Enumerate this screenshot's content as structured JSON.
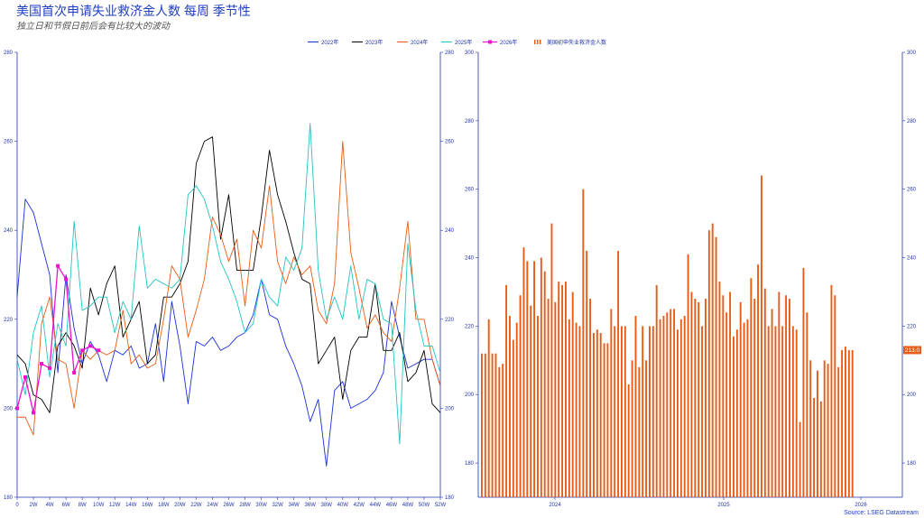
{
  "header": {
    "title": "美国首次申请失业救济金人数 每周 季节性",
    "subtitle": "独立日和节假日前后会有比较大的波动"
  },
  "footer": {
    "source": "Source: LSEG Datastream"
  },
  "colors": {
    "y2022": "#1a2fd6",
    "y2023": "#000000",
    "y2024": "#e85c17",
    "y2025": "#22c4c4",
    "y2026": "#ee11cc",
    "bars": "#e85c17",
    "axis": "#2233aa"
  },
  "chart_data": [
    {
      "type": "line",
      "title": "",
      "x_ticks": [
        "0",
        "2W",
        "4W",
        "6W",
        "8W",
        "10W",
        "12W",
        "14W",
        "16W",
        "18W",
        "20W",
        "22W",
        "24W",
        "26W",
        "28W",
        "30W",
        "32W",
        "34W",
        "36W",
        "38W",
        "40W",
        "42W",
        "44W",
        "46W",
        "48W",
        "50W",
        "52W"
      ],
      "y_ticks": [
        "180",
        "200",
        "220",
        "240",
        "260",
        "280"
      ],
      "ylim": [
        180,
        280
      ],
      "xlim": [
        0,
        52
      ],
      "grid": false,
      "legend_position": "top",
      "series": [
        {
          "name": "2022年",
          "x": [
            0,
            1,
            2,
            3,
            4,
            5,
            6,
            7,
            8,
            9,
            10,
            11,
            12,
            13,
            14,
            15,
            16,
            17,
            18,
            19,
            20,
            21,
            22,
            23,
            24,
            25,
            26,
            27,
            28,
            29,
            30,
            31,
            32,
            33,
            34,
            35,
            36,
            37,
            38,
            39,
            40,
            41,
            42,
            43,
            44,
            45,
            46,
            47,
            48,
            49,
            50,
            51,
            52
          ],
          "values": [
            225,
            247,
            244,
            237,
            230,
            208,
            230,
            218,
            210,
            215,
            212,
            206,
            213,
            212,
            214,
            209,
            210,
            219,
            206,
            224,
            214,
            201,
            215,
            214,
            216,
            213,
            214,
            216,
            217,
            221,
            229,
            221,
            220,
            214,
            210,
            205,
            197,
            202,
            187,
            204,
            206,
            200,
            201,
            202,
            204,
            208,
            224,
            216,
            209,
            210,
            211,
            211,
            205
          ]
        },
        {
          "name": "2023年",
          "x": [
            0,
            1,
            2,
            3,
            4,
            5,
            6,
            7,
            8,
            9,
            10,
            11,
            12,
            13,
            14,
            15,
            16,
            17,
            18,
            19,
            20,
            21,
            22,
            23,
            24,
            25,
            26,
            27,
            28,
            29,
            30,
            31,
            32,
            33,
            34,
            35,
            36,
            37,
            38,
            39,
            40,
            41,
            42,
            43,
            44,
            45,
            46,
            47,
            48,
            49,
            50,
            51,
            52
          ],
          "values": [
            212,
            210,
            203,
            202,
            199,
            214,
            217,
            214,
            209,
            227,
            221,
            228,
            232,
            216,
            220,
            224,
            210,
            212,
            225,
            225,
            228,
            233,
            255,
            260,
            261,
            238,
            248,
            231,
            231,
            231,
            243,
            258,
            248,
            242,
            235,
            229,
            228,
            210,
            213,
            216,
            202,
            213,
            216,
            216,
            228,
            213,
            213,
            217,
            206,
            208,
            213,
            201,
            199
          ]
        },
        {
          "name": "2024年",
          "x": [
            0,
            1,
            2,
            3,
            4,
            5,
            6,
            7,
            8,
            9,
            10,
            11,
            12,
            13,
            14,
            15,
            16,
            17,
            18,
            19,
            20,
            21,
            22,
            23,
            24,
            25,
            26,
            27,
            28,
            29,
            30,
            31,
            32,
            33,
            34,
            35,
            36,
            37,
            38,
            39,
            40,
            41,
            42,
            43,
            44,
            45,
            46,
            47,
            48,
            49,
            50,
            51,
            52
          ],
          "values": [
            198,
            198,
            194,
            219,
            225,
            211,
            210,
            200,
            213,
            211,
            213,
            212,
            213,
            222,
            210,
            212,
            209,
            210,
            220,
            232,
            229,
            216,
            222,
            229,
            243,
            239,
            233,
            238,
            223,
            240,
            236,
            250,
            233,
            228,
            234,
            230,
            232,
            222,
            219,
            228,
            260,
            235,
            227,
            218,
            221,
            217,
            215,
            227,
            242,
            220,
            220,
            211,
            205
          ]
        },
        {
          "name": "2025年",
          "x": [
            0,
            1,
            2,
            3,
            4,
            5,
            6,
            7,
            8,
            9,
            10,
            11,
            12,
            13,
            14,
            15,
            16,
            17,
            18,
            19,
            20,
            21,
            22,
            23,
            24,
            25,
            26,
            27,
            28,
            29,
            30,
            31,
            32,
            33,
            34,
            35,
            36,
            37,
            38,
            39,
            40,
            41,
            42,
            43,
            44,
            45,
            46,
            47,
            48,
            49,
            50,
            51,
            52
          ],
          "values": [
            211,
            203,
            217,
            223,
            207,
            219,
            214,
            242,
            222,
            223,
            225,
            225,
            217,
            224,
            220,
            241,
            227,
            229,
            228,
            227,
            229,
            248,
            250,
            247,
            241,
            233,
            229,
            224,
            217,
            219,
            229,
            225,
            223,
            234,
            231,
            236,
            264,
            231,
            220,
            225,
            220,
            232,
            220,
            229,
            228,
            220,
            219,
            192,
            237,
            222,
            214,
            214,
            208
          ]
        },
        {
          "name": "2026年",
          "x": [
            0,
            1,
            2,
            3,
            4,
            5,
            6,
            7,
            8,
            9,
            10
          ],
          "values": [
            200,
            207,
            199,
            210,
            209,
            232,
            229,
            208,
            213,
            214,
            213
          ]
        }
      ]
    },
    {
      "type": "bar",
      "title": "",
      "series_name": "美国初申失业救济金人数",
      "x_ticks": [
        "2024",
        "2025",
        "2026"
      ],
      "y_ticks": [
        "180",
        "200",
        "220",
        "240",
        "260",
        "280",
        "300"
      ],
      "ylim": [
        170,
        300
      ],
      "grid": false,
      "last_value_label": "213.0",
      "values": [
        212,
        212,
        222,
        212,
        212,
        208,
        209,
        232,
        223,
        216,
        221,
        229,
        243,
        239,
        226,
        239,
        223,
        240,
        236,
        228,
        250,
        227,
        233,
        232,
        233,
        222,
        230,
        221,
        220,
        260,
        242,
        228,
        218,
        219,
        218,
        215,
        215,
        225,
        220,
        242,
        220,
        220,
        203,
        210,
        223,
        208,
        220,
        210,
        220,
        220,
        232,
        222,
        223,
        224,
        225,
        225,
        219,
        222,
        223,
        241,
        230,
        228,
        227,
        220,
        228,
        248,
        250,
        246,
        233,
        229,
        224,
        230,
        217,
        219,
        227,
        221,
        222,
        234,
        228,
        238,
        264,
        231,
        220,
        225,
        220,
        230,
        220,
        229,
        228,
        220,
        219,
        192,
        237,
        224,
        210,
        199,
        207,
        198,
        210,
        209,
        232,
        229,
        208,
        213,
        214,
        213,
        213
      ]
    }
  ]
}
